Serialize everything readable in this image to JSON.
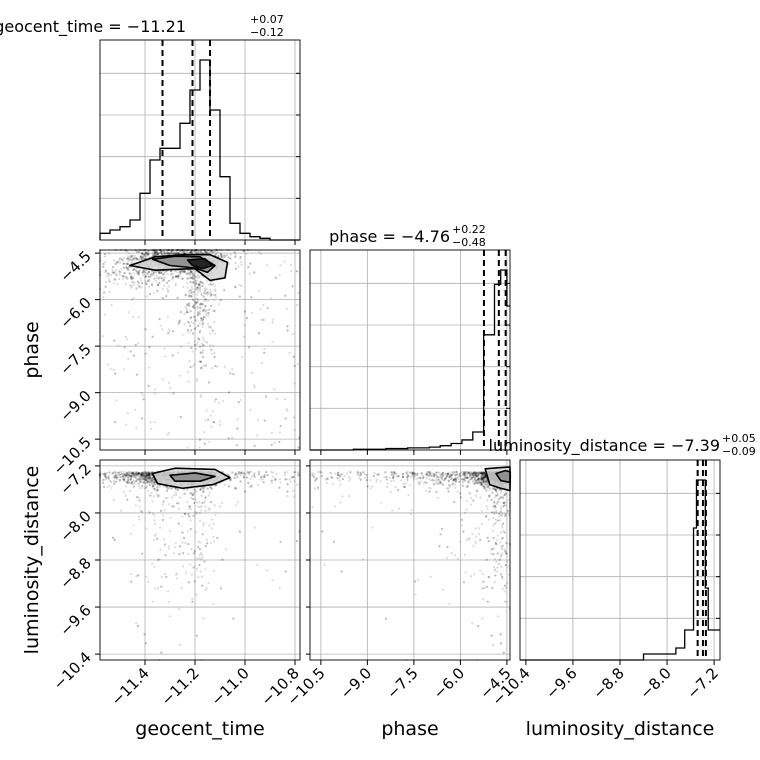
{
  "chart_data": {
    "type": "corner",
    "parameters": [
      "geocent_time",
      "phase",
      "luminosity_distance"
    ],
    "axis_labels": [
      "geocent_time",
      "phase",
      "luminosity_distance"
    ],
    "titles": [
      {
        "param": "geocent_time",
        "prefix": "geocent_time = ",
        "median": "−11.21",
        "plus": "+0.07",
        "minus": "−0.12"
      },
      {
        "param": "phase",
        "prefix": "phase = ",
        "median": "−4.76",
        "plus": "+0.22",
        "minus": "−0.48"
      },
      {
        "param": "luminosity_distance",
        "prefix": "luminosity_distance = ",
        "median": "−7.39",
        "plus": "+0.05",
        "minus": "−0.09"
      }
    ],
    "ranges": {
      "geocent_time": [
        -11.58,
        -10.78
      ],
      "phase": [
        -10.85,
        -4.4
      ],
      "luminosity_distance": [
        -10.5,
        -7.1
      ]
    },
    "ticks": {
      "geocent_time": [
        -11.4,
        -11.2,
        -11.0,
        -10.8
      ],
      "geocent_time_labels": [
        "−11.4",
        "−11.2",
        "−11.0",
        "−10.8"
      ],
      "phase": [
        -10.5,
        -9.0,
        -7.5,
        -6.0,
        -4.5
      ],
      "phase_labels": [
        "−10.5",
        "−9.0",
        "−7.5",
        "−6.0",
        "−4.5"
      ],
      "luminosity_distance": [
        -10.4,
        -9.6,
        -8.8,
        -8.0,
        -7.2
      ],
      "luminosity_distance_labels": [
        "−10.4",
        "−9.6",
        "−8.8",
        "−8.0",
        "−7.2"
      ]
    },
    "quantile_lines": {
      "geocent_time": [
        -11.33,
        -11.21,
        -11.14
      ],
      "phase": [
        -5.24,
        -4.76,
        -4.54
      ],
      "luminosity_distance": [
        -7.48,
        -7.39,
        -7.34
      ]
    },
    "histograms": {
      "geocent_time": {
        "edges": [
          -11.58,
          -11.54,
          -11.5,
          -11.46,
          -11.42,
          -11.38,
          -11.34,
          -11.3,
          -11.26,
          -11.22,
          -11.18,
          -11.14,
          -11.1,
          -11.06,
          -11.02,
          -10.98,
          -10.94,
          -10.9,
          -10.86,
          -10.82,
          -10.78
        ],
        "counts": [
          4,
          6,
          8,
          12,
          28,
          48,
          55,
          55,
          70,
          90,
          108,
          78,
          38,
          10,
          4,
          2,
          1,
          0,
          0,
          0
        ]
      },
      "phase": {
        "edges": [
          -10.85,
          -10.5,
          -10.15,
          -9.8,
          -9.45,
          -9.1,
          -8.75,
          -8.4,
          -8.05,
          -7.7,
          -7.35,
          -7.0,
          -6.65,
          -6.3,
          -5.95,
          -5.6,
          -5.25,
          -4.9,
          -4.7,
          -4.5,
          -4.4
        ],
        "counts": [
          0,
          0,
          0,
          0,
          1,
          1,
          1,
          2,
          2,
          3,
          3,
          4,
          6,
          9,
          14,
          25,
          160,
          230,
          250,
          200
        ]
      },
      "luminosity_distance": {
        "edges": [
          -10.5,
          -10.2,
          -9.9,
          -9.6,
          -9.3,
          -9.0,
          -8.7,
          -8.4,
          -8.1,
          -7.85,
          -7.7,
          -7.55,
          -7.5,
          -7.45,
          -7.4,
          -7.35,
          -7.3,
          -7.2,
          -7.1
        ],
        "counts": [
          0,
          0,
          0,
          0,
          0,
          0,
          0,
          1,
          1,
          2,
          5,
          22,
          30,
          30,
          30,
          12,
          5,
          5
        ]
      }
    },
    "contours": {
      "phase_vs_geocent_time": [
        [
          [
            -11.46,
            -4.9
          ],
          [
            -11.36,
            -4.62
          ],
          [
            -11.24,
            -4.55
          ],
          [
            -11.14,
            -4.55
          ],
          [
            -11.07,
            -4.8
          ],
          [
            -11.08,
            -5.3
          ],
          [
            -11.14,
            -5.38
          ],
          [
            -11.2,
            -5.0
          ],
          [
            -11.36,
            -5.05
          ],
          [
            -11.46,
            -4.9
          ]
        ],
        [
          [
            -11.37,
            -4.7
          ],
          [
            -11.28,
            -4.6
          ],
          [
            -11.18,
            -4.62
          ],
          [
            -11.12,
            -4.9
          ],
          [
            -11.15,
            -5.12
          ],
          [
            -11.2,
            -4.98
          ],
          [
            -11.3,
            -4.9
          ],
          [
            -11.37,
            -4.7
          ]
        ],
        [
          [
            -11.23,
            -4.72
          ],
          [
            -11.16,
            -4.68
          ],
          [
            -11.13,
            -4.9
          ],
          [
            -11.17,
            -5.0
          ],
          [
            -11.21,
            -4.9
          ],
          [
            -11.23,
            -4.72
          ]
        ]
      ],
      "luminosity_distance_vs_geocent_time": [
        [
          [
            -11.37,
            -7.33
          ],
          [
            -11.28,
            -7.24
          ],
          [
            -11.12,
            -7.26
          ],
          [
            -11.06,
            -7.4
          ],
          [
            -11.13,
            -7.52
          ],
          [
            -11.25,
            -7.58
          ],
          [
            -11.35,
            -7.5
          ],
          [
            -11.37,
            -7.33
          ]
        ],
        [
          [
            -11.3,
            -7.36
          ],
          [
            -11.2,
            -7.32
          ],
          [
            -11.12,
            -7.38
          ],
          [
            -11.18,
            -7.46
          ],
          [
            -11.28,
            -7.46
          ],
          [
            -11.3,
            -7.36
          ]
        ]
      ],
      "luminosity_distance_vs_phase": [
        [
          [
            -5.2,
            -7.25
          ],
          [
            -4.75,
            -7.23
          ],
          [
            -4.4,
            -7.22
          ],
          [
            -4.4,
            -7.62
          ],
          [
            -4.7,
            -7.58
          ],
          [
            -5.05,
            -7.52
          ],
          [
            -5.2,
            -7.25
          ]
        ],
        [
          [
            -4.85,
            -7.33
          ],
          [
            -4.55,
            -7.28
          ],
          [
            -4.4,
            -7.3
          ],
          [
            -4.4,
            -7.48
          ],
          [
            -4.7,
            -7.45
          ],
          [
            -4.85,
            -7.33
          ]
        ]
      ]
    },
    "grid": true,
    "colors": {
      "line": "#000000",
      "grid": "#b0b0b0",
      "points": "#000000"
    }
  }
}
